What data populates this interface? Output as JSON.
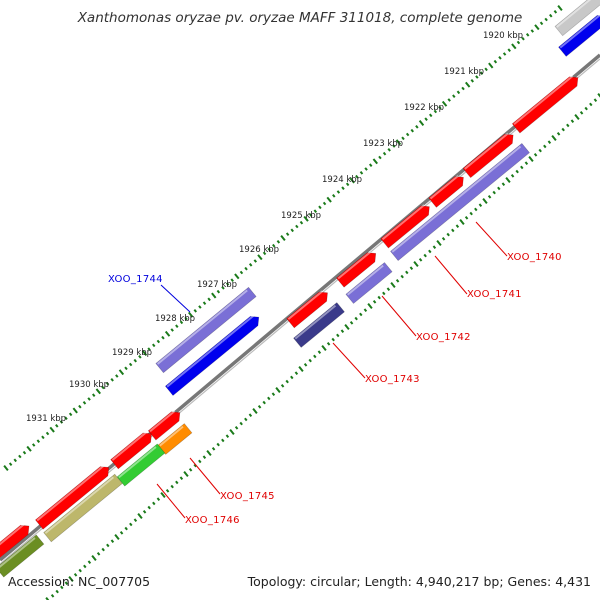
{
  "title": "Xanthomonas oryzae pv. oryzae MAFF 311018, complete genome",
  "accession_line": "Accession: NC_007705",
  "topology_line": "Topology: circular; Length: 4,940,217 bp; Genes: 4,431",
  "ruler_labels": [
    "1920 kbp",
    "1921 kbp",
    "1922 kbp",
    "1923 kbp",
    "1924 kbp",
    "1925 kbp",
    "1926 kbp",
    "1927 kbp",
    "1928 kbp",
    "1929 kbp",
    "1930 kbp",
    "1931 kbp"
  ],
  "gene_labels": [
    "XOO_1740",
    "XOO_1741",
    "XOO_1742",
    "XOO_1743",
    "XOO_1744",
    "XOO_1745",
    "XOO_1746"
  ],
  "colors": {
    "forward": "#ff0000",
    "reverse": "#0000ee",
    "purple": "#7a6fd6",
    "dark_purple": "#3a3a8a",
    "orange": "#ff8c00",
    "green": "#33cc33",
    "olive": "#bdb76b",
    "dark_olive": "#6b8e23",
    "gray": "#c8c8c8",
    "ticks": "#1a7a1a",
    "label_red": "#e00000",
    "label_blue": "#0000dd"
  }
}
